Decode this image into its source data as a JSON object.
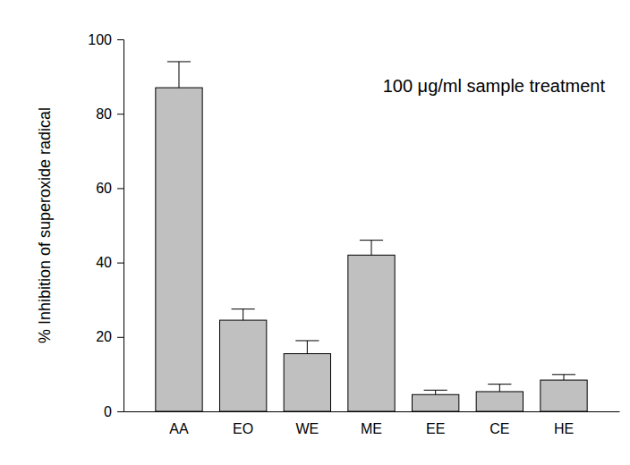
{
  "chart_data": {
    "type": "bar",
    "categories": [
      "AA",
      "EO",
      "WE",
      "ME",
      "EE",
      "CE",
      "HE"
    ],
    "values": [
      87,
      24.5,
      15.5,
      42,
      4.5,
      5.3,
      8.4
    ],
    "errors": [
      7,
      3,
      3.5,
      4,
      1.2,
      2,
      1.5
    ],
    "color": "#c0c0c0",
    "ylabel": "% Inhibition of superoxide radical",
    "annotation": "100 μg/ml sample treatment",
    "ylim": [
      0,
      100
    ],
    "yticks": [
      0,
      20,
      40,
      60,
      80,
      100
    ]
  }
}
